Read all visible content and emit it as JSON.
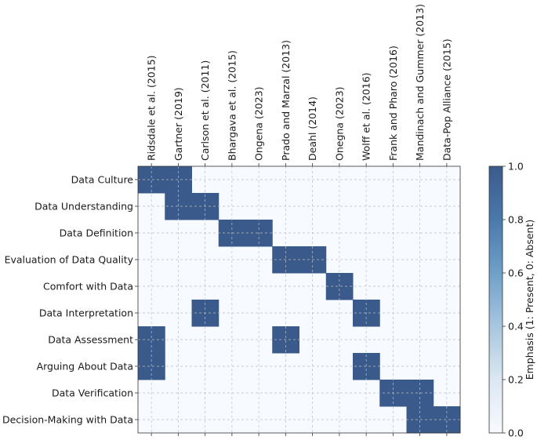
{
  "chart_data": {
    "type": "heatmap",
    "title": "",
    "xlabel": "",
    "ylabel": "",
    "x_labels": [
      "Ridsdale et al. (2015)",
      "Gartner (2019)",
      "Carlson et al. (2011)",
      "Bhargava et al. (2015)",
      "Ongena (2023)",
      "Prado and Marzal (2013)",
      "Deahl (2014)",
      "Onegna (2023)",
      "Wolff et al. (2016)",
      "Frank and Pharo (2016)",
      "Mandinach and Gummer (2013)",
      "Data-Pop Alliance (2015)"
    ],
    "y_labels": [
      "Data Culture",
      "Data Understanding",
      "Data Definition",
      "Evaluation of Data Quality",
      "Comfort with Data",
      "Data Interpretation",
      "Data Assessment",
      "Arguing About Data",
      "Data Verification",
      "Decision-Making with Data"
    ],
    "matrix": [
      [
        1,
        1,
        0,
        0,
        0,
        0,
        0,
        0,
        0,
        0,
        0,
        0
      ],
      [
        0,
        1,
        1,
        0,
        0,
        0,
        0,
        0,
        0,
        0,
        0,
        0
      ],
      [
        0,
        0,
        0,
        1,
        1,
        0,
        0,
        0,
        0,
        0,
        0,
        0
      ],
      [
        0,
        0,
        0,
        0,
        0,
        1,
        1,
        0,
        0,
        0,
        0,
        0
      ],
      [
        0,
        0,
        0,
        0,
        0,
        0,
        0,
        1,
        0,
        0,
        0,
        0
      ],
      [
        0,
        0,
        1,
        0,
        0,
        0,
        0,
        0,
        1,
        0,
        0,
        0
      ],
      [
        1,
        0,
        0,
        0,
        0,
        1,
        0,
        0,
        0,
        0,
        0,
        0
      ],
      [
        1,
        0,
        0,
        0,
        0,
        0,
        0,
        0,
        1,
        0,
        0,
        0
      ],
      [
        0,
        0,
        0,
        0,
        0,
        0,
        0,
        0,
        0,
        1,
        1,
        0
      ],
      [
        0,
        0,
        0,
        0,
        0,
        0,
        0,
        0,
        0,
        0,
        1,
        1
      ]
    ],
    "colorbar": {
      "label": "Emphasis (1: Present, 0: Absent)",
      "ticks": [
        "0.0",
        "0.2",
        "0.4",
        "0.6",
        "0.8",
        "1.0"
      ],
      "range": [
        0,
        1
      ]
    },
    "colors": {
      "present": "#3b5a8c",
      "absent": "#f7fbff",
      "grid": "#b9c0c9"
    },
    "grid": true
  }
}
